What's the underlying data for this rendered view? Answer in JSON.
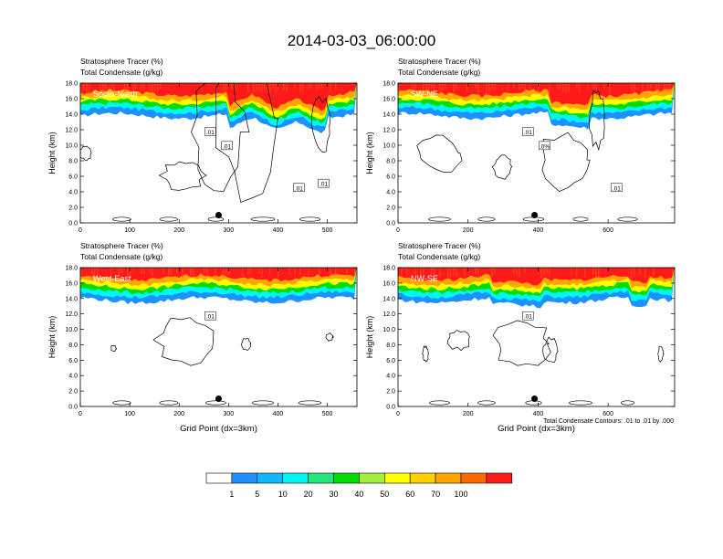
{
  "title": "2014-03-03_06:00:00",
  "footnote": "Total Condensate Contours: .01 to .01 by .000",
  "colorbar": {
    "colors": [
      "#ffffff",
      "#1e90ff",
      "#0fb8ff",
      "#00f5f5",
      "#22e67a",
      "#00dd00",
      "#a3f03c",
      "#ffff00",
      "#ffd000",
      "#ffa500",
      "#ff6a00",
      "#ff1a1a"
    ],
    "labels": [
      "1",
      "5",
      "10",
      "20",
      "30",
      "40",
      "50",
      "60",
      "70",
      "100"
    ]
  },
  "chart_data": [
    {
      "type": "heatmap",
      "name": "South-North",
      "subtitle_1": "Stratosphere Tracer   (%)",
      "subtitle_2": "Total Condensate   (g/kg)",
      "ylabel": "Height (km)",
      "xlabel": "",
      "xlim": [
        0,
        560
      ],
      "ylim": [
        0,
        18
      ],
      "xticks": [
        "0",
        "100",
        "200",
        "300",
        "400",
        "500"
      ],
      "yticks": [
        "0.0",
        "2.0",
        "4.0",
        "6.0",
        "8.0",
        "10.0",
        "12.0",
        "14.0",
        "16.0",
        "18.0"
      ],
      "contour_labels": [
        ".01",
        ".01",
        ".01",
        ".01"
      ],
      "marker_x": 280,
      "marker_y": 1.0,
      "tracer_base_km": 15.0
    },
    {
      "type": "heatmap",
      "name": "SW-NE",
      "subtitle_1": "Stratosphere Tracer   (%)",
      "subtitle_2": "Total Condensate   (g/kg)",
      "ylabel": "Height (km)",
      "xlabel": "",
      "xlim": [
        0,
        790
      ],
      "ylim": [
        0,
        18
      ],
      "xticks": [
        "0",
        "200",
        "400",
        "600"
      ],
      "yticks": [
        "0.0",
        "2.0",
        "4.0",
        "6.0",
        "8.0",
        "10.0",
        "12.0",
        "14.0",
        "16.0",
        "18.0"
      ],
      "contour_labels": [
        ".01",
        ".0%",
        ".01"
      ],
      "marker_x": 390,
      "marker_y": 1.0,
      "tracer_base_km": 15.0
    },
    {
      "type": "heatmap",
      "name": "West-East",
      "subtitle_1": "Stratosphere Tracer   (%)",
      "subtitle_2": "Total Condensate   (g/kg)",
      "ylabel": "Height (km)",
      "xlabel": "Grid Point (dx=3km)",
      "xlim": [
        0,
        560
      ],
      "ylim": [
        0,
        18
      ],
      "xticks": [
        "0",
        "100",
        "200",
        "300",
        "400",
        "500"
      ],
      "yticks": [
        "0.0",
        "2.0",
        "4.0",
        "6.0",
        "8.0",
        "10.0",
        "12.0",
        "14.0",
        "16.0",
        "18.0"
      ],
      "contour_labels": [
        ".01"
      ],
      "marker_x": 280,
      "marker_y": 1.0,
      "tracer_base_km": 15.0
    },
    {
      "type": "heatmap",
      "name": "NW-SE",
      "subtitle_1": "Stratosphere Tracer   (%)",
      "subtitle_2": "Total Condensate   (g/kg)",
      "ylabel": "Height (km)",
      "xlabel": "Grid Point (dx=3km)",
      "xlim": [
        0,
        790
      ],
      "ylim": [
        0,
        18
      ],
      "xticks": [
        "0",
        "200",
        "400",
        "600"
      ],
      "yticks": [
        "0.0",
        "2.0",
        "4.0",
        "6.0",
        "8.0",
        "10.0",
        "12.0",
        "14.0",
        "16.0",
        "18.0"
      ],
      "contour_labels": [
        ".01"
      ],
      "marker_x": 390,
      "marker_y": 1.0,
      "tracer_base_km": 15.0
    }
  ]
}
